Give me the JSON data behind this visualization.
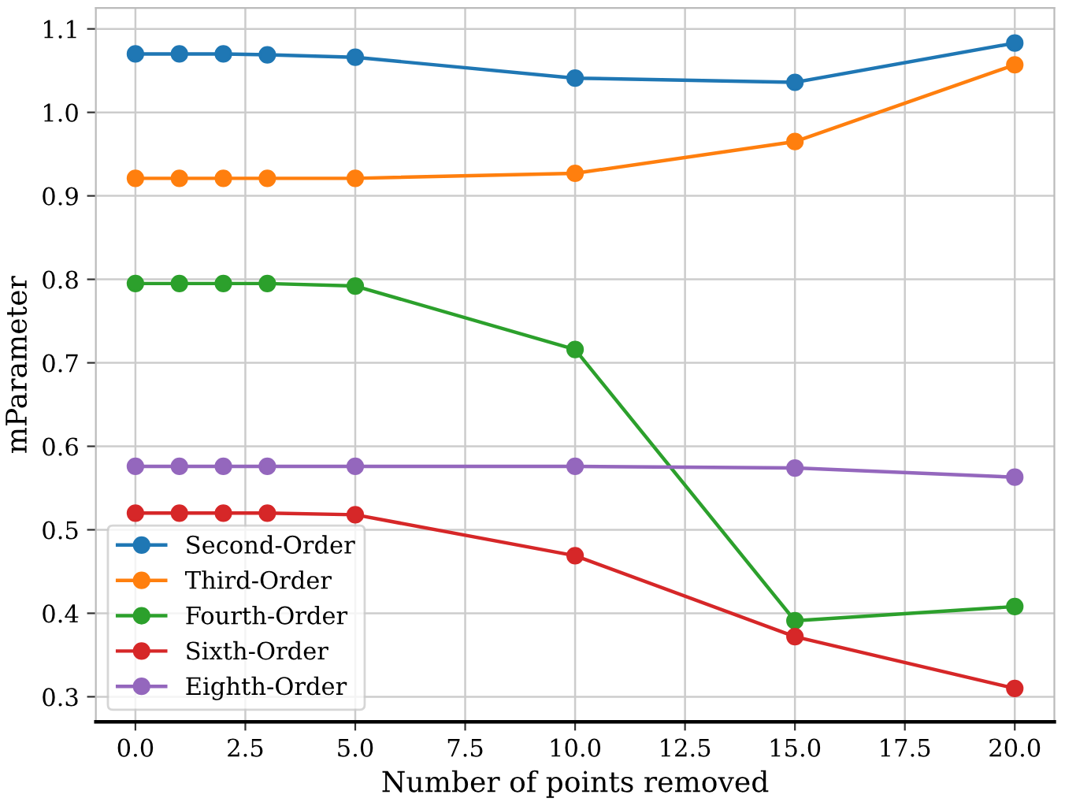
{
  "chart_data": {
    "type": "line",
    "xlabel": "Number of points removed",
    "ylabel": "mParameter",
    "x": [
      0,
      1,
      2,
      3,
      5,
      10,
      15,
      20
    ],
    "series": [
      {
        "name": "Second-Order",
        "color": "#1f77b4",
        "values": [
          1.07,
          1.07,
          1.07,
          1.069,
          1.066,
          1.041,
          1.036,
          1.083
        ]
      },
      {
        "name": "Third-Order",
        "color": "#ff7f0e",
        "values": [
          0.921,
          0.921,
          0.921,
          0.921,
          0.921,
          0.927,
          0.965,
          1.057
        ]
      },
      {
        "name": "Fourth-Order",
        "color": "#2ca02c",
        "values": [
          0.795,
          0.795,
          0.795,
          0.795,
          0.792,
          0.716,
          0.391,
          0.408
        ]
      },
      {
        "name": "Sixth-Order",
        "color": "#d62728",
        "values": [
          0.52,
          0.52,
          0.52,
          0.52,
          0.518,
          0.469,
          0.372,
          0.31
        ]
      },
      {
        "name": "Eighth-Order",
        "color": "#9467bd",
        "values": [
          0.576,
          0.576,
          0.576,
          0.576,
          0.576,
          0.576,
          0.574,
          0.563
        ]
      }
    ],
    "xlim": [
      -0.9,
      20.9
    ],
    "ylim": [
      0.27,
      1.125
    ],
    "xticks": [
      {
        "value": 0,
        "label": "0.0"
      },
      {
        "value": 2.5,
        "label": "2.5"
      },
      {
        "value": 5,
        "label": "5.0"
      },
      {
        "value": 7.5,
        "label": "7.5"
      },
      {
        "value": 10,
        "label": "10.0"
      },
      {
        "value": 12.5,
        "label": "12.5"
      },
      {
        "value": 15,
        "label": "15.0"
      },
      {
        "value": 17.5,
        "label": "17.5"
      },
      {
        "value": 20,
        "label": "20.0"
      }
    ],
    "yticks": [
      0.3,
      0.4,
      0.5,
      0.6,
      0.7,
      0.8,
      0.9,
      {
        "value": 1.0,
        "label": "1.0"
      },
      1.1
    ],
    "grid": true,
    "legend": "bottom left",
    "marker": "circle",
    "line_style": "solid"
  }
}
